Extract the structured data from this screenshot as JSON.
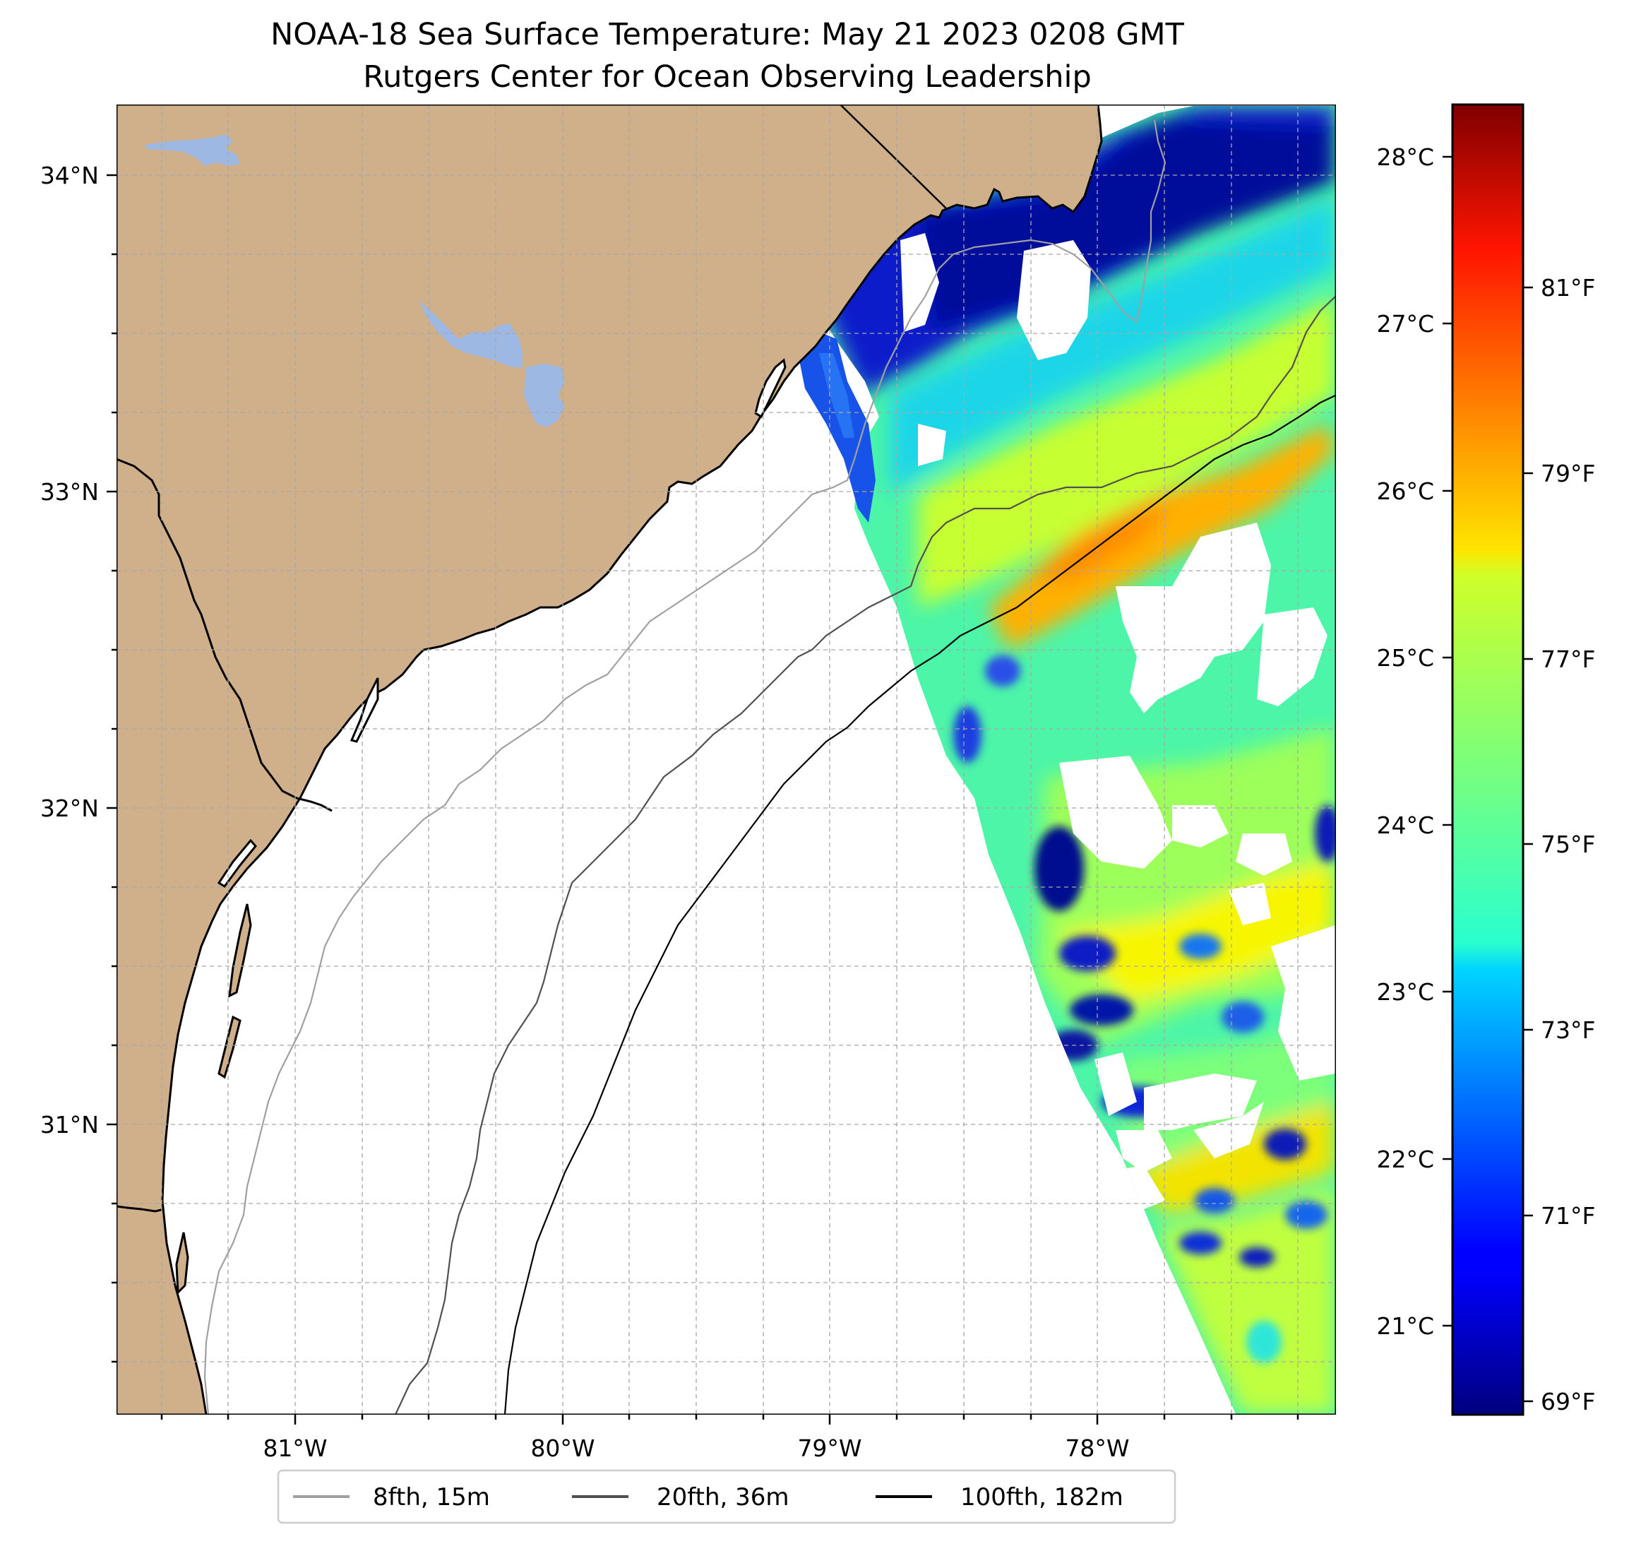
{
  "title": "NOAA-18 Sea Surface Temperature: May 21 2023 0208 GMT",
  "subtitle": "Rutgers Center for Ocean Observing Leadership",
  "map": {
    "lon_range": [
      -81.67,
      -77.11
    ],
    "lat_range": [
      30.07,
      34.22
    ],
    "land_color": "#CFB08A",
    "lake_color": "#9DB8E2",
    "no_data_color": "#FFFFFF",
    "gridlines": "on (dashed)",
    "lon_labels": [
      "81°W",
      "80°W",
      "79°W",
      "78°W"
    ],
    "lat_labels": [
      "34°N",
      "33°N",
      "32°N",
      "31°N"
    ]
  },
  "colorbar": {
    "colormap": "jet",
    "range_c": [
      20.4,
      28.3
    ],
    "celsius_labels": [
      "28°C",
      "27°C",
      "26°C",
      "25°C",
      "24°C",
      "23°C",
      "22°C",
      "21°C"
    ],
    "fahrenheit_labels": [
      "81°F",
      "79°F",
      "77°F",
      "75°F",
      "73°F",
      "71°F",
      "69°F"
    ]
  },
  "legend": {
    "placement": "bottom-center",
    "items": [
      {
        "label": "8fth, 15m",
        "color": "#A0A0A0"
      },
      {
        "label": "20fth, 36m",
        "color": "#505050"
      },
      {
        "label": "100fth, 182m",
        "color": "#000000"
      }
    ]
  }
}
